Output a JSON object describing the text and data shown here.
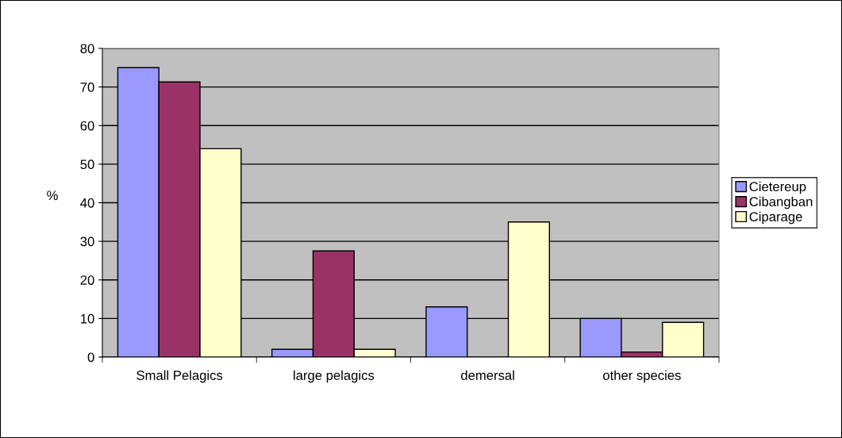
{
  "chart_data": {
    "type": "bar",
    "ylabel": "%",
    "categories": [
      "Small Pelagics",
      "large pelagics",
      "demersal",
      "other species"
    ],
    "series": [
      {
        "name": "Cietereup",
        "color": "#9999ff",
        "values": [
          75,
          2,
          13,
          10
        ]
      },
      {
        "name": "Cibangban",
        "color": "#993366",
        "values": [
          71.3,
          27.5,
          null,
          1.3
        ]
      },
      {
        "name": "Ciparage",
        "color": "#ffffcc",
        "values": [
          54,
          2,
          35,
          9
        ]
      }
    ],
    "ylim": [
      0,
      80
    ],
    "yticks": [
      0,
      10,
      20,
      30,
      40,
      50,
      60,
      70,
      80
    ],
    "grid": "y",
    "legend": "right"
  }
}
